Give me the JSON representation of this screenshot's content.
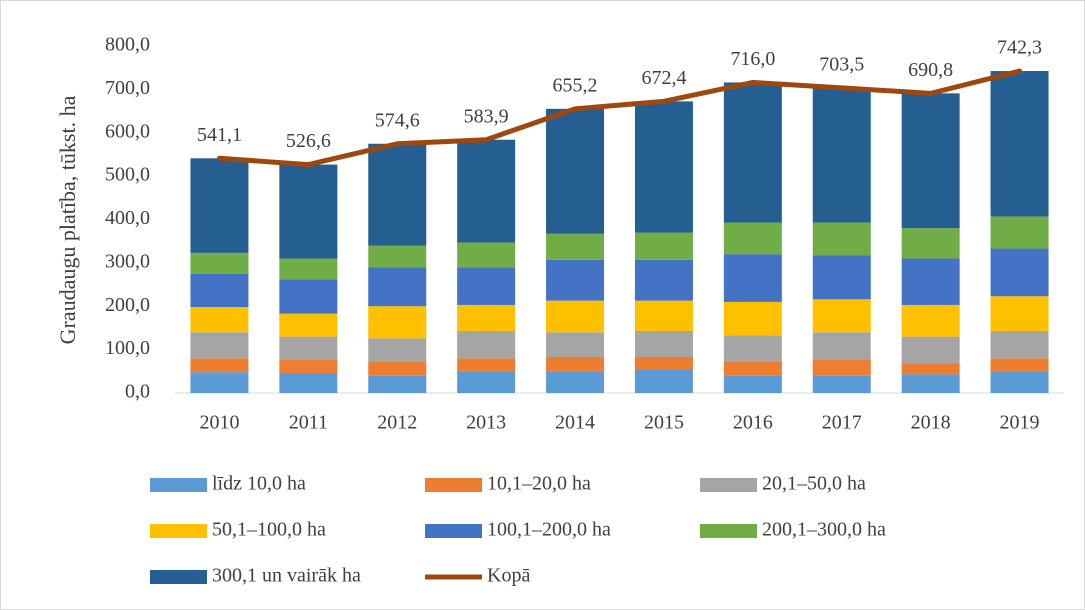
{
  "chart_data": {
    "type": "bar",
    "stacked": true,
    "y_label": "Graudaugu platība, tūkst. ha",
    "categories": [
      "2010",
      "2011",
      "2012",
      "2013",
      "2014",
      "2015",
      "2016",
      "2017",
      "2018",
      "2019"
    ],
    "ylim": [
      0,
      800
    ],
    "yticks": [
      {
        "value": 0,
        "label": "0,0"
      },
      {
        "value": 100,
        "label": "100,0"
      },
      {
        "value": 200,
        "label": "200,0"
      },
      {
        "value": 300,
        "label": "300,0"
      },
      {
        "value": 400,
        "label": "400,0"
      },
      {
        "value": 500,
        "label": "500,0"
      },
      {
        "value": 600,
        "label": "600,0"
      },
      {
        "value": 700,
        "label": "700,0"
      },
      {
        "value": 800,
        "label": "800,0"
      }
    ],
    "series": [
      {
        "name": "līdz 10,0 ha",
        "color": "#5b9bd5",
        "values": [
          48,
          46,
          40,
          50,
          50,
          53,
          40,
          40,
          43,
          50
        ]
      },
      {
        "name": "10,1–20,0 ha",
        "color": "#ed7d31",
        "values": [
          32,
          30,
          33,
          30,
          33,
          30,
          33,
          36,
          25,
          30
        ]
      },
      {
        "name": "20,1–50,0 ha",
        "color": "#a5a5a5",
        "values": [
          60,
          54,
          53,
          63,
          57,
          60,
          60,
          64,
          62,
          63
        ]
      },
      {
        "name": "50,1–100,0 ha",
        "color": "#ffc000",
        "values": [
          58,
          53,
          74,
          60,
          73,
          70,
          77,
          76,
          73,
          80
        ]
      },
      {
        "name": "100,1–200,0 ha",
        "color": "#4472c4",
        "values": [
          77,
          79,
          90,
          87,
          94,
          94,
          110,
          101,
          107,
          110
        ]
      },
      {
        "name": "200,1–300,0 ha",
        "color": "#70ad47",
        "values": [
          48,
          48,
          50,
          57,
          60,
          63,
          73,
          76,
          70,
          74
        ]
      },
      {
        "name": "300,1 un vairāk ha",
        "color": "#255e91",
        "values": [
          218.1,
          216.6,
          234.6,
          236.9,
          288.2,
          302.4,
          323.0,
          310.5,
          310.8,
          335.3
        ]
      },
      {
        "name": "Kopā",
        "type": "line",
        "color": "#9e480e",
        "values": [
          541.1,
          526.6,
          574.6,
          583.9,
          655.2,
          672.4,
          716.0,
          703.5,
          690.8,
          742.3
        ],
        "value_labels": [
          "541,1",
          "526,6",
          "574,6",
          "583,9",
          "655,2",
          "672,4",
          "716,0",
          "703,5",
          "690,8",
          "742,3"
        ]
      }
    ]
  }
}
